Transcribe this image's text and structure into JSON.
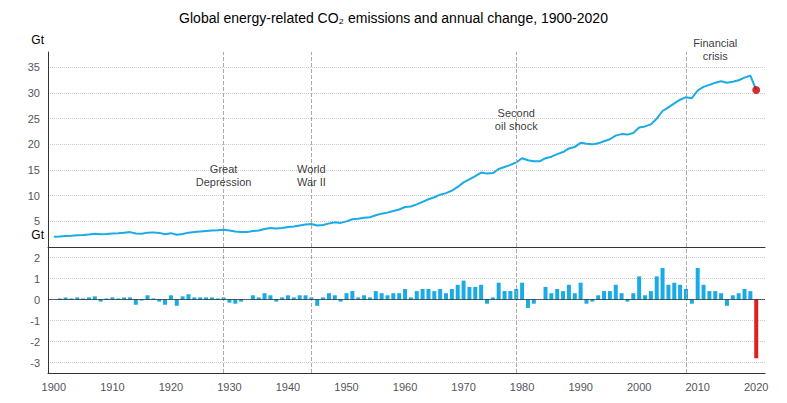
{
  "chart_data": [
    {
      "type": "line",
      "title": "Global energy-related CO₂ emissions and annual change, 1900-2020",
      "ylabel": "Gt",
      "x": [
        1900,
        1901,
        1902,
        1903,
        1904,
        1905,
        1906,
        1907,
        1908,
        1909,
        1910,
        1911,
        1912,
        1913,
        1914,
        1915,
        1916,
        1917,
        1918,
        1919,
        1920,
        1921,
        1922,
        1923,
        1924,
        1925,
        1926,
        1927,
        1928,
        1929,
        1930,
        1931,
        1932,
        1933,
        1934,
        1935,
        1936,
        1937,
        1938,
        1939,
        1940,
        1941,
        1942,
        1943,
        1944,
        1945,
        1946,
        1947,
        1948,
        1949,
        1950,
        1951,
        1952,
        1953,
        1954,
        1955,
        1956,
        1957,
        1958,
        1959,
        1960,
        1961,
        1962,
        1963,
        1964,
        1965,
        1966,
        1967,
        1968,
        1969,
        1970,
        1971,
        1972,
        1973,
        1974,
        1975,
        1976,
        1977,
        1978,
        1979,
        1980,
        1981,
        1982,
        1983,
        1984,
        1985,
        1986,
        1987,
        1988,
        1989,
        1990,
        1991,
        1992,
        1993,
        1994,
        1995,
        1996,
        1997,
        1998,
        1999,
        2000,
        2001,
        2002,
        2003,
        2004,
        2005,
        2006,
        2007,
        2008,
        2009,
        2010,
        2011,
        2012,
        2013,
        2014,
        2015,
        2016,
        2017,
        2018,
        2019,
        2020
      ],
      "values": [
        2.0,
        2.05,
        2.15,
        2.2,
        2.3,
        2.35,
        2.45,
        2.6,
        2.5,
        2.55,
        2.65,
        2.7,
        2.8,
        2.9,
        2.65,
        2.6,
        2.8,
        2.85,
        2.75,
        2.5,
        2.7,
        2.4,
        2.55,
        2.8,
        2.9,
        3.0,
        3.1,
        3.2,
        3.25,
        3.35,
        3.2,
        3.0,
        2.9,
        2.9,
        3.1,
        3.2,
        3.5,
        3.7,
        3.6,
        3.7,
        3.9,
        4.0,
        4.2,
        4.4,
        4.5,
        4.2,
        4.3,
        4.6,
        4.8,
        4.7,
        5.0,
        5.4,
        5.5,
        5.7,
        5.8,
        6.2,
        6.5,
        6.7,
        7.0,
        7.3,
        7.8,
        7.9,
        8.3,
        8.8,
        9.3,
        9.7,
        10.2,
        10.5,
        11.0,
        11.7,
        12.6,
        13.2,
        13.8,
        14.5,
        14.3,
        14.4,
        15.2,
        15.6,
        16.0,
        16.5,
        17.3,
        16.9,
        16.7,
        16.7,
        17.3,
        17.6,
        18.1,
        18.5,
        19.2,
        19.5,
        20.3,
        20.1,
        20.0,
        20.2,
        20.6,
        21.0,
        21.7,
        22.0,
        21.9,
        22.2,
        23.3,
        23.5,
        23.9,
        25.0,
        26.5,
        27.2,
        28.0,
        28.7,
        29.2,
        29.0,
        30.5,
        31.2,
        31.6,
        32.0,
        32.3,
        32.0,
        32.2,
        32.5,
        33.0,
        33.4,
        30.6
      ],
      "color": "#1aabe6",
      "marker_point": {
        "x": 2020,
        "y": 30.6,
        "color": "#cc0000"
      },
      "vlines": {
        "x": [
          1929,
          1944,
          1979,
          2008
        ],
        "color": "#aaaaaa"
      },
      "annotations": [
        {
          "x": 1929,
          "y": 11,
          "label": "Great\nDepression"
        },
        {
          "x": 1944,
          "y": 11,
          "label": "World\nWar II"
        },
        {
          "x": 1979,
          "y": 22,
          "label": "Second\noil shock"
        },
        {
          "x": 2013,
          "y": 35.5,
          "label": "Financial\ncrisis"
        }
      ],
      "xlim": [
        1899,
        2021.5
      ],
      "xticks": [
        1900,
        1910,
        1920,
        1930,
        1940,
        1950,
        1960,
        1970,
        1980,
        1990,
        2000,
        2010,
        2020
      ],
      "ylim": [
        0,
        38
      ],
      "yticks": [
        5,
        10,
        15,
        20,
        25,
        30,
        35
      ],
      "grid": true,
      "tick_labels": "y"
    },
    {
      "type": "bar",
      "ylabel": "Gt",
      "x": [
        1900,
        1901,
        1902,
        1903,
        1904,
        1905,
        1906,
        1907,
        1908,
        1909,
        1910,
        1911,
        1912,
        1913,
        1914,
        1915,
        1916,
        1917,
        1918,
        1919,
        1920,
        1921,
        1922,
        1923,
        1924,
        1925,
        1926,
        1927,
        1928,
        1929,
        1930,
        1931,
        1932,
        1933,
        1934,
        1935,
        1936,
        1937,
        1938,
        1939,
        1940,
        1941,
        1942,
        1943,
        1944,
        1945,
        1946,
        1947,
        1948,
        1949,
        1950,
        1951,
        1952,
        1953,
        1954,
        1955,
        1956,
        1957,
        1958,
        1959,
        1960,
        1961,
        1962,
        1963,
        1964,
        1965,
        1966,
        1967,
        1968,
        1969,
        1970,
        1971,
        1972,
        1973,
        1974,
        1975,
        1976,
        1977,
        1978,
        1979,
        1980,
        1981,
        1982,
        1983,
        1984,
        1985,
        1986,
        1987,
        1988,
        1989,
        1990,
        1991,
        1992,
        1993,
        1994,
        1995,
        1996,
        1997,
        1998,
        1999,
        2000,
        2001,
        2002,
        2003,
        2004,
        2005,
        2006,
        2007,
        2008,
        2009,
        2010,
        2011,
        2012,
        2013,
        2014,
        2015,
        2016,
        2017,
        2018,
        2019,
        2020
      ],
      "values": [
        0,
        0.05,
        0.1,
        0.05,
        0.1,
        0.05,
        0.1,
        0.15,
        -0.1,
        0.05,
        0.1,
        0.05,
        0.1,
        0.1,
        -0.25,
        -0.05,
        0.2,
        0.05,
        -0.1,
        -0.25,
        0.2,
        -0.3,
        0.15,
        0.25,
        0.1,
        0.1,
        0.1,
        0.1,
        0.05,
        0.1,
        -0.15,
        -0.2,
        -0.1,
        0,
        0.2,
        0.1,
        0.3,
        0.2,
        -0.1,
        0.1,
        0.2,
        0.1,
        0.2,
        0.2,
        0.1,
        -0.3,
        0.1,
        0.3,
        0.2,
        -0.1,
        0.3,
        0.4,
        0.1,
        0.2,
        0.1,
        0.4,
        0.3,
        0.2,
        0.3,
        0.3,
        0.5,
        0.1,
        0.4,
        0.5,
        0.5,
        0.4,
        0.5,
        0.3,
        0.5,
        0.7,
        0.9,
        0.6,
        0.6,
        0.7,
        -0.2,
        0.1,
        0.8,
        0.4,
        0.4,
        0.5,
        0.8,
        -0.4,
        -0.2,
        0,
        0.6,
        0.3,
        0.5,
        0.4,
        0.7,
        0.3,
        0.8,
        -0.2,
        -0.1,
        0.2,
        0.4,
        0.4,
        0.7,
        0.3,
        -0.1,
        0.3,
        1.1,
        0.2,
        0.4,
        1.1,
        1.5,
        0.7,
        0.8,
        0.7,
        0.5,
        -0.2,
        1.5,
        0.7,
        0.4,
        0.4,
        0.3,
        -0.3,
        0.2,
        0.3,
        0.5,
        0.4,
        -2.8
      ],
      "colors": [
        "#1aabe6",
        "#1aabe6",
        "#1aabe6",
        "#1aabe6",
        "#1aabe6",
        "#1aabe6",
        "#1aabe6",
        "#1aabe6",
        "#1aabe6",
        "#1aabe6",
        "#1aabe6",
        "#1aabe6",
        "#1aabe6",
        "#1aabe6",
        "#1aabe6",
        "#1aabe6",
        "#1aabe6",
        "#1aabe6",
        "#1aabe6",
        "#1aabe6",
        "#1aabe6",
        "#1aabe6",
        "#1aabe6",
        "#1aabe6",
        "#1aabe6",
        "#1aabe6",
        "#1aabe6",
        "#1aabe6",
        "#1aabe6",
        "#1aabe6",
        "#1aabe6",
        "#1aabe6",
        "#1aabe6",
        "#1aabe6",
        "#1aabe6",
        "#1aabe6",
        "#1aabe6",
        "#1aabe6",
        "#1aabe6",
        "#1aabe6",
        "#1aabe6",
        "#1aabe6",
        "#1aabe6",
        "#1aabe6",
        "#1aabe6",
        "#1aabe6",
        "#1aabe6",
        "#1aabe6",
        "#1aabe6",
        "#1aabe6",
        "#1aabe6",
        "#1aabe6",
        "#1aabe6",
        "#1aabe6",
        "#1aabe6",
        "#1aabe6",
        "#1aabe6",
        "#1aabe6",
        "#1aabe6",
        "#1aabe6",
        "#1aabe6",
        "#1aabe6",
        "#1aabe6",
        "#1aabe6",
        "#1aabe6",
        "#1aabe6",
        "#1aabe6",
        "#1aabe6",
        "#1aabe6",
        "#1aabe6",
        "#1aabe6",
        "#1aabe6",
        "#1aabe6",
        "#1aabe6",
        "#1aabe6",
        "#1aabe6",
        "#1aabe6",
        "#1aabe6",
        "#1aabe6",
        "#1aabe6",
        "#1aabe6",
        "#1aabe6",
        "#1aabe6",
        "#1aabe6",
        "#1aabe6",
        "#1aabe6",
        "#1aabe6",
        "#1aabe6",
        "#1aabe6",
        "#1aabe6",
        "#1aabe6",
        "#1aabe6",
        "#1aabe6",
        "#1aabe6",
        "#1aabe6",
        "#1aabe6",
        "#1aabe6",
        "#1aabe6",
        "#1aabe6",
        "#1aabe6",
        "#1aabe6",
        "#1aabe6",
        "#1aabe6",
        "#1aabe6",
        "#1aabe6",
        "#1aabe6",
        "#1aabe6",
        "#1aabe6",
        "#1aabe6",
        "#1aabe6",
        "#1aabe6",
        "#1aabe6",
        "#1aabe6",
        "#1aabe6",
        "#1aabe6",
        "#1aabe6",
        "#1aabe6",
        "#1aabe6",
        "#1aabe6",
        "#1aabe6",
        "#e02020"
      ],
      "vlines": {
        "x": [
          1929,
          1944,
          1979,
          2008
        ],
        "color": "#aaaaaa"
      },
      "xlim": [
        1899,
        2021.5
      ],
      "xticks": [
        1900,
        1910,
        1920,
        1930,
        1940,
        1950,
        1960,
        1970,
        1980,
        1990,
        2000,
        2010,
        2020
      ],
      "ylim": [
        -3.5,
        2.5
      ],
      "yticks": [
        -3,
        -2,
        -1,
        0,
        1,
        2
      ],
      "grid": true
    }
  ]
}
